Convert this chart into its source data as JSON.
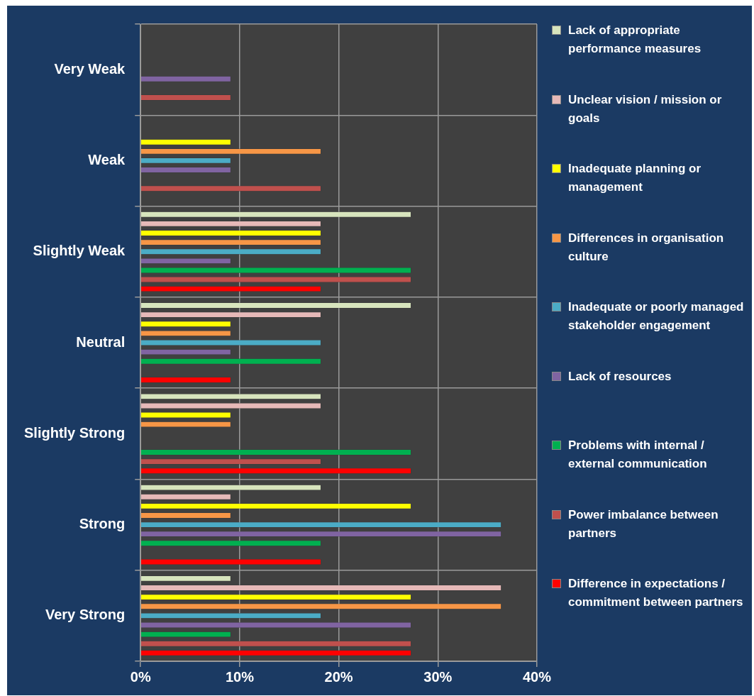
{
  "chart_data": {
    "type": "bar",
    "orientation": "horizontal",
    "categories": [
      "Very Weak",
      "Weak",
      "Slightly Weak",
      "Neutral",
      "Slightly Strong",
      "Strong",
      "Very Strong"
    ],
    "series": [
      {
        "name": "Lack of appropriate performance measures",
        "color": "#d7e4bd",
        "values": [
          null,
          null,
          27.3,
          27.3,
          18.2,
          18.2,
          9.1
        ]
      },
      {
        "name": "Unclear vision / mission or goals",
        "color": "#e6b9b8",
        "values": [
          null,
          null,
          18.2,
          18.2,
          18.2,
          9.1,
          36.4
        ]
      },
      {
        "name": "Inadequate planning  or management",
        "color": "#ffff00",
        "values": [
          null,
          9.1,
          18.2,
          9.1,
          9.1,
          27.3,
          27.3
        ]
      },
      {
        "name": "Differences in organisation culture",
        "color": "#f79646",
        "values": [
          null,
          18.2,
          18.2,
          9.1,
          9.1,
          9.1,
          36.4
        ]
      },
      {
        "name": "Inadequate or poorly managed stakeholder engagement",
        "color": "#4bacc6",
        "values": [
          null,
          9.1,
          18.2,
          18.2,
          null,
          36.4,
          18.2
        ]
      },
      {
        "name": "Lack of resources",
        "color": "#8064a2",
        "values": [
          9.1,
          9.1,
          9.1,
          9.1,
          null,
          36.4,
          27.3
        ]
      },
      {
        "name": "Problems with internal / external communication",
        "color": "#00b050",
        "values": [
          null,
          null,
          27.3,
          18.2,
          27.3,
          18.2,
          9.1
        ]
      },
      {
        "name": "Power imbalance between partners",
        "color": "#c0504d",
        "values": [
          9.1,
          18.2,
          27.3,
          null,
          18.2,
          null,
          27.3
        ]
      },
      {
        "name": "Difference in expectations / commitment between partners",
        "color": "#ff0000",
        "values": [
          null,
          null,
          18.2,
          9.1,
          27.3,
          18.2,
          27.3
        ]
      }
    ],
    "xlim": [
      0,
      40
    ],
    "xticks": [
      {
        "value": 0,
        "label": "0%"
      },
      {
        "value": 10,
        "label": "10%"
      },
      {
        "value": 20,
        "label": "20%"
      },
      {
        "value": 30,
        "label": "30%"
      },
      {
        "value": 40,
        "label": "40%"
      }
    ],
    "grid": true,
    "legend": "right"
  }
}
